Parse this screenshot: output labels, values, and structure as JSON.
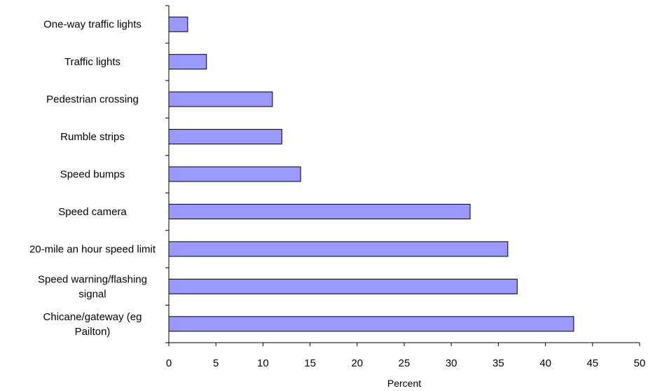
{
  "chart_data": {
    "type": "bar",
    "orientation": "horizontal",
    "categories": [
      [
        "One-way traffic lights"
      ],
      [
        "Traffic lights"
      ],
      [
        "Pedestrian crossing"
      ],
      [
        "Rumble strips"
      ],
      [
        "Speed bumps"
      ],
      [
        "Speed camera"
      ],
      [
        "20-mile an hour speed limit"
      ],
      [
        "Speed warning/flashing",
        "signal"
      ],
      [
        "Chicane/gateway (eg",
        "Pailton)"
      ]
    ],
    "values": [
      2,
      4,
      11,
      12,
      14,
      32,
      36,
      37,
      43
    ],
    "xlabel": "Percent",
    "xlim": [
      0,
      50
    ],
    "xticks": [
      0,
      5,
      10,
      15,
      20,
      25,
      30,
      35,
      40,
      45,
      50
    ],
    "grid": false,
    "legend": "none",
    "bar_color": "#9999ff",
    "bar_edge_color": "#000000"
  }
}
